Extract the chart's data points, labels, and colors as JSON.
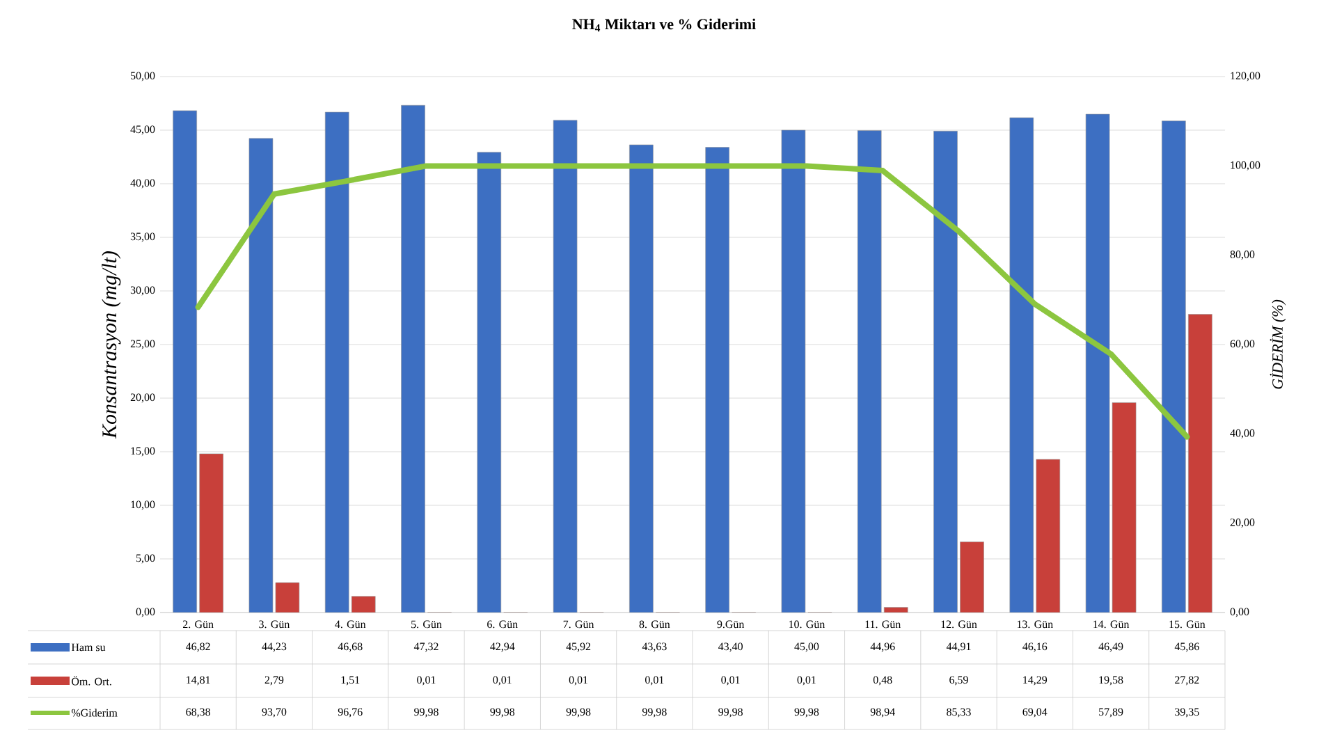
{
  "chart_data": {
    "type": "bar",
    "title": "NH$_{4}$ Miktarı ve % Giderimi",
    "ylabel": "Konsantrasyon (mg/lt)",
    "y2label": "GİDERİM (%)",
    "categories": [
      "2. Gün",
      "3. Gün",
      "4. Gün",
      "5. Gün",
      "6. Gün",
      "7. Gün",
      "8. Gün",
      "9.Gün",
      "10. Gün",
      "11. Gün",
      "12. Gün",
      "13. Gün",
      "14. Gün",
      "15. Gün"
    ],
    "series": [
      {
        "name": "Ham su",
        "color": "#3d6fc2",
        "values": [
          46.82,
          44.23,
          46.68,
          47.32,
          42.94,
          45.92,
          43.63,
          43.4,
          45.0,
          44.96,
          44.91,
          46.16,
          46.49,
          45.86
        ],
        "value_labels": [
          "46,82",
          "44,23",
          "46,68",
          "47,32",
          "42,94",
          "45,92",
          "43,63",
          "43,40",
          "45,00",
          "44,96",
          "44,91",
          "46,16",
          "46,49",
          "45,86"
        ]
      },
      {
        "name": "Öm. Ort.",
        "color": "#c8403a",
        "values": [
          14.81,
          2.79,
          1.51,
          0.01,
          0.01,
          0.01,
          0.01,
          0.01,
          0.01,
          0.48,
          6.59,
          14.29,
          19.58,
          27.82
        ],
        "value_labels": [
          "14,81",
          "2,79",
          "1,51",
          "0,01",
          "0,01",
          "0,01",
          "0,01",
          "0,01",
          "0,01",
          "0,48",
          "6,59",
          "14,29",
          "19,58",
          "27,82"
        ]
      },
      {
        "name": "%Giderim",
        "type": "line",
        "axis": "y2",
        "color": "#8cc63f",
        "line_style": "solid",
        "values": [
          68.38,
          93.7,
          96.76,
          99.98,
          99.98,
          99.98,
          99.98,
          99.98,
          99.98,
          98.94,
          85.33,
          69.04,
          57.89,
          39.35
        ],
        "value_labels": [
          "68,38",
          "93,70",
          "96,76",
          "99,98",
          "99,98",
          "99,98",
          "99,98",
          "99,98",
          "99,98",
          "98,94",
          "85,33",
          "69,04",
          "57,89",
          "39,35"
        ]
      }
    ],
    "ylim": [
      0,
      50
    ],
    "yticks": [
      {
        "value": 0,
        "label": "0,00"
      },
      {
        "value": 5,
        "label": "5,00"
      },
      {
        "value": 10,
        "label": "10,00"
      },
      {
        "value": 15,
        "label": "15,00"
      },
      {
        "value": 20,
        "label": "20,00"
      },
      {
        "value": 25,
        "label": "25,00"
      },
      {
        "value": 30,
        "label": "30,00"
      },
      {
        "value": 35,
        "label": "35,00"
      },
      {
        "value": 40,
        "label": "40,00"
      },
      {
        "value": 45,
        "label": "45,00"
      },
      {
        "value": 50,
        "label": "50,00"
      }
    ],
    "y2lim": [
      0,
      120
    ],
    "y2ticks": [
      {
        "value": 0,
        "label": "0,00"
      },
      {
        "value": 20,
        "label": "20,00"
      },
      {
        "value": 40,
        "label": "40,00"
      },
      {
        "value": 60,
        "label": "60,00"
      },
      {
        "value": 80,
        "label": "80,00"
      },
      {
        "value": 100,
        "label": "100,00"
      },
      {
        "value": 120,
        "label": "120,00"
      }
    ],
    "grid": "y",
    "legend": "bottom",
    "marker": "none"
  }
}
